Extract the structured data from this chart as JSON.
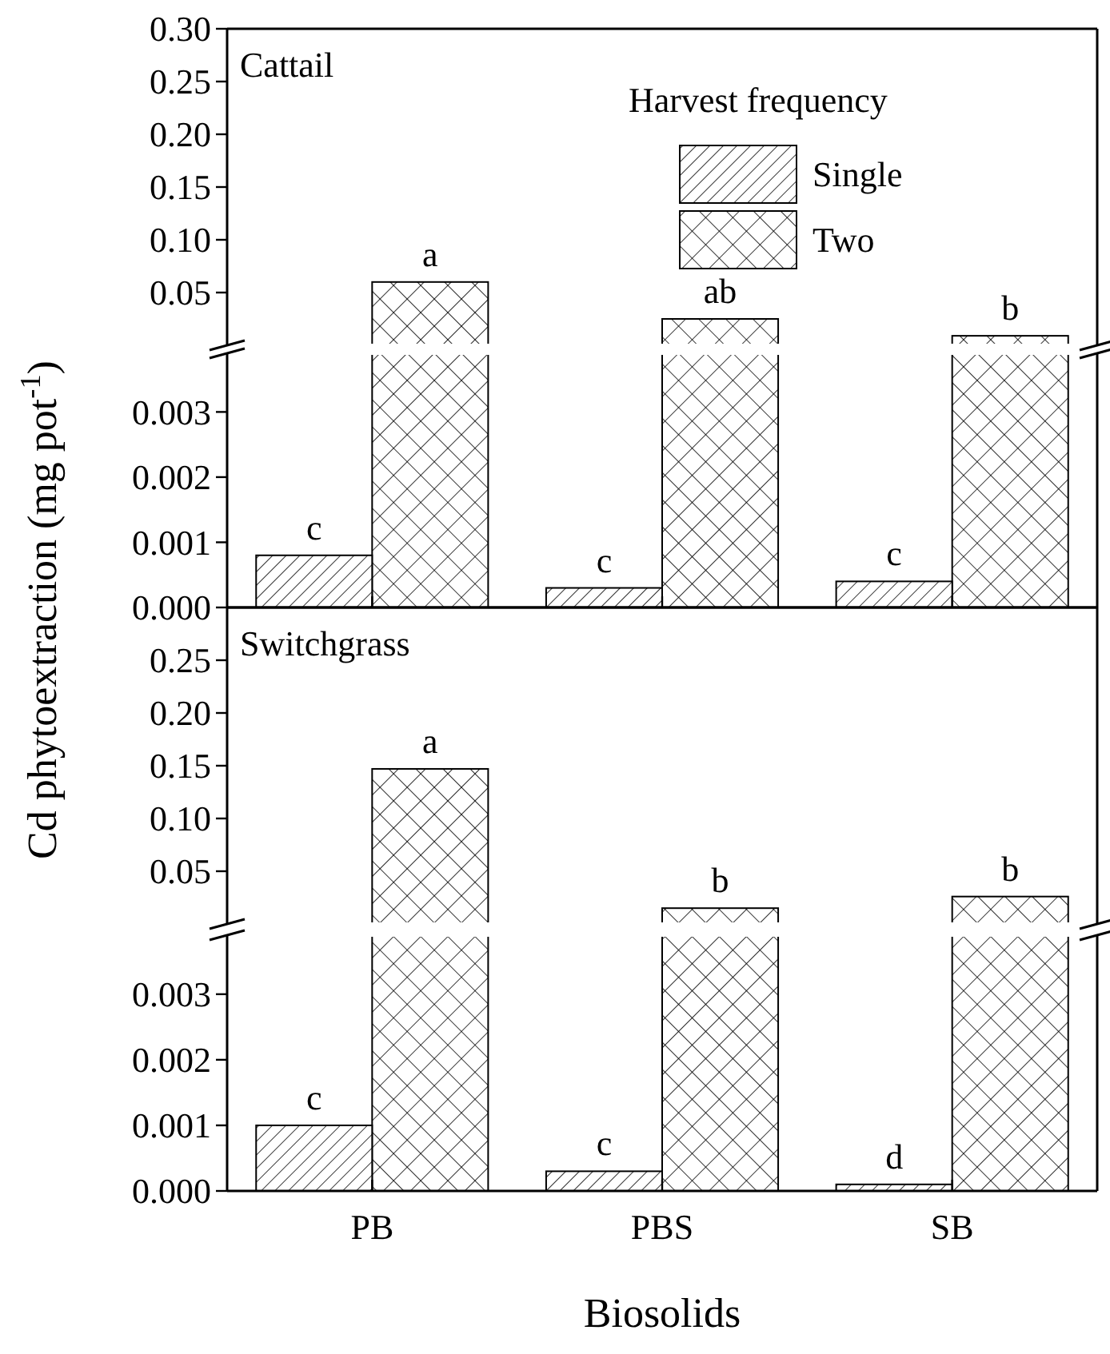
{
  "chart_data": [
    {
      "type": "bar",
      "title": "Cattail",
      "ylabel": "Cd phytoextraction (mg pot$^{-1}$)",
      "legend_title": "Harvest frequency",
      "legend": "right",
      "tick_labels": "y",
      "categories": [
        null,
        null,
        null
      ],
      "ylim": [
        0,
        0.3
      ],
      "yticks": [
        {
          "value": 0.05,
          "label": "0.05"
        },
        {
          "value": 0.1,
          "label": "0.10"
        },
        {
          "value": 0.15,
          "label": "0.15"
        },
        {
          "value": 0.2,
          "label": "0.20"
        },
        {
          "value": 0.25,
          "label": "0.25"
        },
        {
          "value": 0.3,
          "label": "0.30"
        }
      ],
      "series": [
        {
          "name": "Single",
          "color": "#000000",
          "values": [
            null,
            null,
            null
          ]
        },
        {
          "name": "Two",
          "color": "#000000",
          "values": [
            0.06,
            0.025,
            0.009
          ],
          "value_labels": [
            "a",
            "ab",
            "b"
          ]
        }
      ]
    },
    {
      "type": "bar",
      "tick_labels": "y",
      "categories": [
        null,
        null,
        null
      ],
      "ylim": [
        0,
        0.0039
      ],
      "yticks": [
        {
          "value": 0,
          "label": "0.000"
        },
        {
          "value": 0.001,
          "label": "0.001"
        },
        {
          "value": 0.002,
          "label": "0.002"
        },
        {
          "value": 0.003,
          "label": "0.003"
        }
      ],
      "series": [
        {
          "color": "#000000",
          "values": [
            0.0008,
            0.0003,
            0.0004
          ],
          "value_labels": [
            "c",
            "c",
            "c"
          ]
        },
        {
          "color": "#000000",
          "values": [
            null,
            null,
            null
          ]
        }
      ]
    },
    {
      "type": "bar",
      "title": "Switchgrass",
      "tick_labels": "y",
      "categories": [
        null,
        null,
        null
      ],
      "ylim": [
        0,
        0.3
      ],
      "yticks": [
        {
          "value": 0.05,
          "label": "0.05"
        },
        {
          "value": 0.1,
          "label": "0.10"
        },
        {
          "value": 0.15,
          "label": "0.15"
        },
        {
          "value": 0.2,
          "label": "0.20"
        },
        {
          "value": 0.25,
          "label": "0.25"
        }
      ],
      "series": [
        {
          "color": "#000000",
          "values": [
            null,
            null,
            null
          ]
        },
        {
          "color": "#000000",
          "values": [
            0.147,
            0.015,
            0.026
          ],
          "value_labels": [
            "a",
            "b",
            "b"
          ]
        }
      ]
    },
    {
      "type": "bar",
      "xlabel": "Biosolids",
      "categories": [
        "PB",
        "PBS",
        "SB"
      ],
      "ylim": [
        0,
        0.0039
      ],
      "yticks": [
        {
          "value": 0,
          "label": "0.000"
        },
        {
          "value": 0.001,
          "label": "0.001"
        },
        {
          "value": 0.002,
          "label": "0.002"
        },
        {
          "value": 0.003,
          "label": "0.003"
        }
      ],
      "series": [
        {
          "color": "#000000",
          "values": [
            0.001,
            0.0003,
            0.0001
          ],
          "value_labels": [
            "c",
            "c",
            "d"
          ]
        },
        {
          "color": "#000000",
          "values": [
            null,
            null,
            null
          ]
        }
      ]
    }
  ]
}
